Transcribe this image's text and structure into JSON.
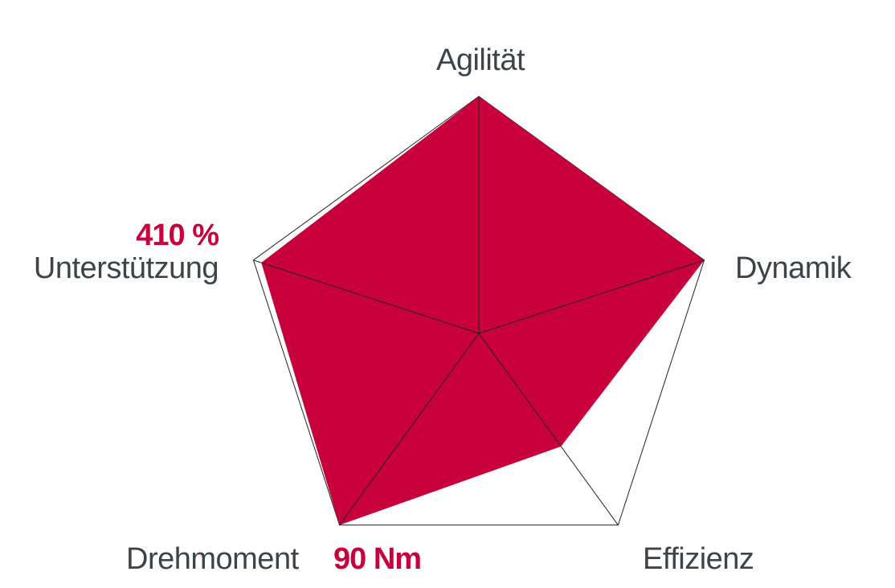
{
  "chart_data": {
    "type": "radar",
    "axes": [
      "Agilität",
      "Dynamik",
      "Effizienz",
      "Drehmoment",
      "Unterstützung"
    ],
    "values": [
      1.0,
      1.0,
      0.59,
      1.0,
      0.965
    ],
    "range": [
      0,
      1
    ],
    "grid": false,
    "annotations": {
      "unterstuetzung": "410 %",
      "drehmoment": "90 Nm"
    },
    "colors": {
      "fill": "#c8003c",
      "outline": "#222222",
      "text": "#3c4448",
      "value_text": "#c8003c"
    }
  }
}
